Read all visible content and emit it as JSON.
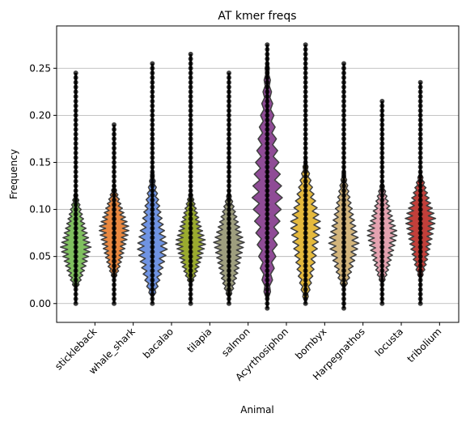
{
  "chart_data": {
    "type": "violin",
    "title": "AT kmer freqs",
    "xlabel": "Animal",
    "ylabel": "Frequency",
    "ylim": [
      -0.02,
      0.295
    ],
    "yticks": [
      0.0,
      0.05,
      0.1,
      0.15,
      0.2,
      0.25
    ],
    "ytick_labels": [
      "0.00",
      "0.05",
      "0.10",
      "0.15",
      "0.20",
      "0.25"
    ],
    "grid": "y",
    "categories": [
      "stickleback",
      "whale_shark",
      "bacalao",
      "tilapia",
      "salmon",
      "Acyrthosiphon",
      "bombyx",
      "Harpegnathos",
      "locusta",
      "tribolium"
    ],
    "series": [
      {
        "category": "stickleback",
        "color": "#7fbf5f",
        "min": 0.0,
        "max": 0.245,
        "median": 0.06,
        "violin_top": 0.125,
        "violin_bottom": 0.015
      },
      {
        "category": "whale_shark",
        "color": "#e8873f",
        "min": 0.0,
        "max": 0.19,
        "median": 0.08,
        "violin_top": 0.13,
        "violin_bottom": 0.025
      },
      {
        "category": "bacalao",
        "color": "#6f93e2",
        "min": 0.0,
        "max": 0.255,
        "median": 0.06,
        "violin_top": 0.15,
        "violin_bottom": 0.005
      },
      {
        "category": "tilapia",
        "color": "#9aab2f",
        "min": 0.0,
        "max": 0.265,
        "median": 0.065,
        "violin_top": 0.125,
        "violin_bottom": 0.02
      },
      {
        "category": "salmon",
        "color": "#9e9e7e",
        "min": 0.0,
        "max": 0.245,
        "median": 0.065,
        "violin_top": 0.125,
        "violin_bottom": 0.005
      },
      {
        "category": "Acyrthosiphon",
        "color": "#8f4b96",
        "min": -0.005,
        "max": 0.275,
        "median": 0.115,
        "violin_top": 0.275,
        "violin_bottom": 0.0
      },
      {
        "category": "bombyx",
        "color": "#e4b93d",
        "min": 0.0,
        "max": 0.275,
        "median": 0.085,
        "violin_top": 0.16,
        "violin_bottom": 0.0
      },
      {
        "category": "Harpegnathos",
        "color": "#d2b47b",
        "min": -0.005,
        "max": 0.255,
        "median": 0.065,
        "violin_top": 0.15,
        "violin_bottom": 0.015
      },
      {
        "category": "locusta",
        "color": "#e4a2b0",
        "min": 0.0,
        "max": 0.215,
        "median": 0.075,
        "violin_top": 0.135,
        "violin_bottom": 0.02
      },
      {
        "category": "tribolium",
        "color": "#c23f3a",
        "min": 0.0,
        "max": 0.235,
        "median": 0.09,
        "violin_top": 0.145,
        "violin_bottom": 0.025
      }
    ]
  }
}
